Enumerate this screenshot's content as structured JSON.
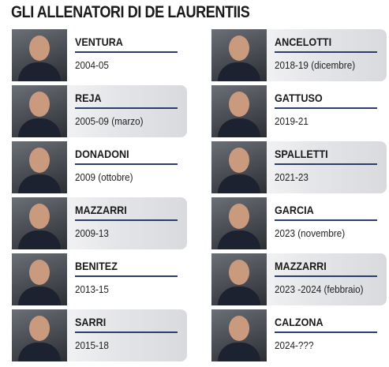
{
  "title": "GLI ALLENATORI DI DE LAURENTIIS",
  "coaches": [
    {
      "name": "VENTURA",
      "period": "2004-05"
    },
    {
      "name": "REJA",
      "period": "2005-09 (marzo)"
    },
    {
      "name": "DONADONI",
      "period": "2009 (ottobre)"
    },
    {
      "name": "MAZZARRI",
      "period": "2009-13"
    },
    {
      "name": "BENITEZ",
      "period": "2013-15"
    },
    {
      "name": "SARRI",
      "period": "2015-18"
    },
    {
      "name": "ANCELOTTI",
      "period": "2018-19 (dicembre)"
    },
    {
      "name": "GATTUSO",
      "period": "2019-21"
    },
    {
      "name": "SPALLETTI",
      "period": "2021-23"
    },
    {
      "name": "GARCIA",
      "period": "2023 (novembre)"
    },
    {
      "name": "MAZZARRI",
      "period": "2023 -2024 (febbraio)"
    },
    {
      "name": "CALZONA",
      "period": "2024-???"
    }
  ]
}
